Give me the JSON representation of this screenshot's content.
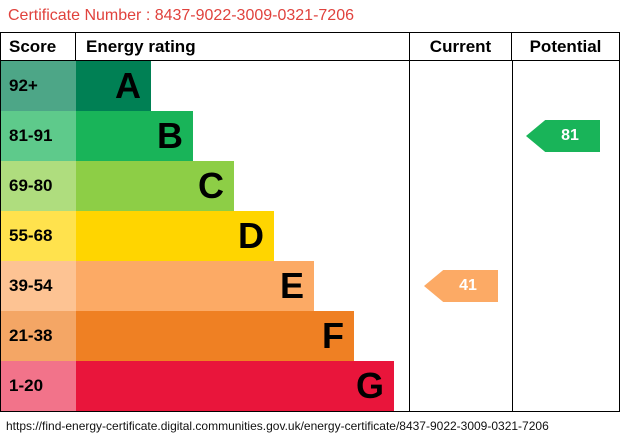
{
  "certificate": {
    "label": "Certificate Number : 8437-9022-3009-0321-7206"
  },
  "table": {
    "headers": {
      "score": "Score",
      "rating": "Energy rating",
      "current": "Current",
      "potential": "Potential"
    }
  },
  "chart_data": {
    "type": "bar",
    "title": "Energy rating",
    "categories": [
      "A",
      "B",
      "C",
      "D",
      "E",
      "F",
      "G"
    ],
    "bands": [
      {
        "letter": "A",
        "score": "92+",
        "color": "#008054",
        "tint": "#4da687"
      },
      {
        "letter": "B",
        "score": "81-91",
        "color": "#19b459",
        "tint": "#5eca8b"
      },
      {
        "letter": "C",
        "score": "69-80",
        "color": "#8dce46",
        "tint": "#afdd7e"
      },
      {
        "letter": "D",
        "score": "55-68",
        "color": "#ffd500",
        "tint": "#ffe24d"
      },
      {
        "letter": "E",
        "score": "39-54",
        "color": "#fcaa65",
        "tint": "#fdc393"
      },
      {
        "letter": "F",
        "score": "21-38",
        "color": "#ef8023",
        "tint": "#f4a665"
      },
      {
        "letter": "G",
        "score": "1-20",
        "color": "#e9153b",
        "tint": "#f2738a"
      }
    ],
    "current": {
      "value": "41",
      "band": "E",
      "color": "#fcaa65"
    },
    "potential": {
      "value": "81",
      "band": "B",
      "color": "#19b459"
    },
    "legend_position": "none",
    "grid": false
  },
  "colors": {
    "certificate_text": "#e0423d",
    "border": "#000000"
  },
  "footer": {
    "url": "https://find-energy-certificate.digital.communities.gov.uk/energy-certificate/8437-9022-3009-0321-7206"
  }
}
